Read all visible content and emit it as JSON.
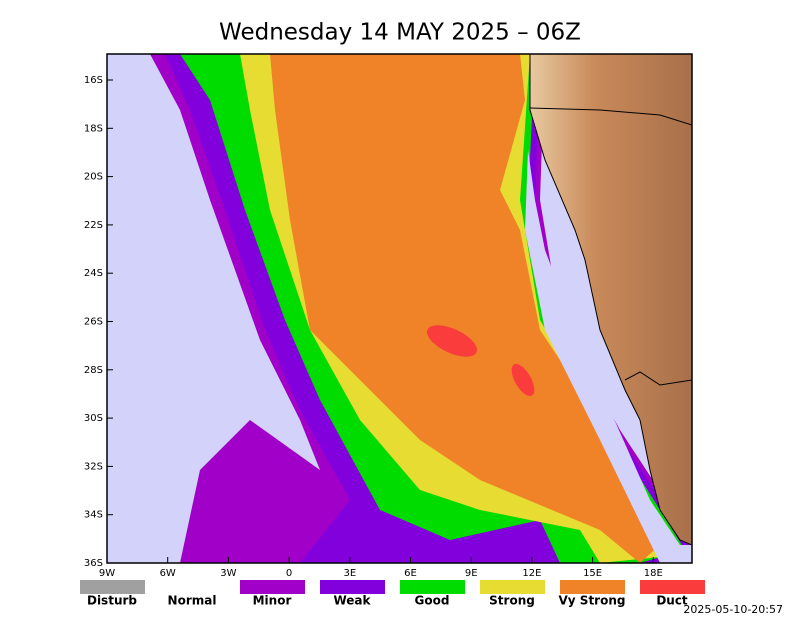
{
  "title": "Wednesday 14 MAY 2025 – 06Z",
  "latitudes": [
    "16S",
    "18S",
    "20S",
    "22S",
    "24S",
    "26S",
    "28S",
    "30S",
    "32S",
    "34S",
    "36S"
  ],
  "longitudes": [
    "9W",
    "6W",
    "3W",
    "0",
    "3E",
    "6E",
    "9E",
    "12E",
    "15E",
    "18E"
  ],
  "legend": [
    {
      "label": "Disturb",
      "color": "#a0a0a0"
    },
    {
      "label": "Normal",
      "color": "#ffffff"
    },
    {
      "label": "Minor",
      "color": "#a000c8"
    },
    {
      "label": "Weak",
      "color": "#8200dc"
    },
    {
      "label": "Good",
      "color": "#00dc00"
    },
    {
      "label": "Strong",
      "color": "#e6dc32"
    },
    {
      "label": "Vy Strong",
      "color": "#f08228"
    },
    {
      "label": "Duct",
      "color": "#fa3c3c"
    }
  ],
  "timestamp": "2025-05-10-20:57"
}
